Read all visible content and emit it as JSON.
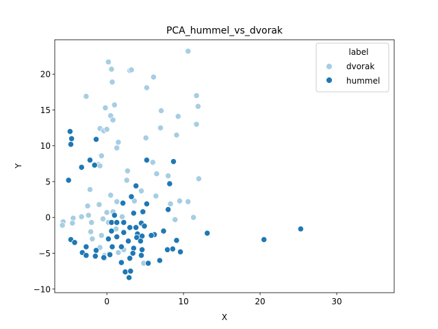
{
  "chart_data": {
    "type": "scatter",
    "title": "PCA_hummel_vs_dvorak",
    "xlabel": "X",
    "ylabel": "Y",
    "xlim": [
      -6.8,
      37.5
    ],
    "ylim": [
      -10.5,
      24.8
    ],
    "xticks": [
      0,
      10,
      20,
      30
    ],
    "yticks": [
      -10,
      -5,
      0,
      5,
      10,
      15,
      20
    ],
    "grid": false,
    "legend": {
      "title": "label",
      "placement": "top-right"
    },
    "series": [
      {
        "name": "dvorak",
        "color": "#a6cee3",
        "points": [
          [
            10.6,
            23.2
          ],
          [
            0.2,
            21.7
          ],
          [
            0.6,
            20.7
          ],
          [
            3.0,
            20.5
          ],
          [
            3.2,
            20.6
          ],
          [
            6.1,
            19.6
          ],
          [
            0.7,
            18.9
          ],
          [
            5.2,
            18.1
          ],
          [
            -2.7,
            16.9
          ],
          [
            11.7,
            17.0
          ],
          [
            1.0,
            15.7
          ],
          [
            -0.2,
            15.3
          ],
          [
            11.9,
            15.5
          ],
          [
            7.1,
            14.9
          ],
          [
            0.5,
            14.2
          ],
          [
            9.3,
            14.1
          ],
          [
            0.8,
            13.6
          ],
          [
            11.7,
            13.0
          ],
          [
            -0.9,
            12.4
          ],
          [
            -0.4,
            12.1
          ],
          [
            0.0,
            12.3
          ],
          [
            7.0,
            12.5
          ],
          [
            9.1,
            11.5
          ],
          [
            5.1,
            11.1
          ],
          [
            1.5,
            10.5
          ],
          [
            1.3,
            9.7
          ],
          [
            -0.7,
            8.6
          ],
          [
            -1.1,
            7.4
          ],
          [
            -0.9,
            7.2
          ],
          [
            6.0,
            7.7
          ],
          [
            2.7,
            6.5
          ],
          [
            6.5,
            6.1
          ],
          [
            2.6,
            5.2
          ],
          [
            8.0,
            5.8
          ],
          [
            12.0,
            5.4
          ],
          [
            -2.2,
            3.9
          ],
          [
            4.5,
            3.7
          ],
          [
            0.5,
            3.1
          ],
          [
            6.4,
            3.0
          ],
          [
            -2.5,
            1.6
          ],
          [
            1.3,
            2.2
          ],
          [
            3.6,
            2.3
          ],
          [
            9.5,
            2.3
          ],
          [
            10.6,
            2.2
          ],
          [
            8.3,
            1.9
          ],
          [
            -1.0,
            1.8
          ],
          [
            0.0,
            0.7
          ],
          [
            0.8,
            0.8
          ],
          [
            2.0,
            0.1
          ],
          [
            -2.4,
            0.3
          ],
          [
            -3.3,
            0.1
          ],
          [
            -4.4,
            -0.1
          ],
          [
            -0.5,
            -0.2
          ],
          [
            11.3,
            0.0
          ],
          [
            8.9,
            -0.3
          ],
          [
            -5.7,
            -0.6
          ],
          [
            -4.5,
            -0.8
          ],
          [
            -2.0,
            -0.7
          ],
          [
            0.2,
            -0.7
          ],
          [
            -5.8,
            -1.1
          ],
          [
            3.1,
            -1.4
          ],
          [
            1.2,
            -1.6
          ],
          [
            -2.1,
            -2.0
          ],
          [
            -0.7,
            -2.5
          ],
          [
            -1.9,
            -3.0
          ],
          [
            -0.9,
            -4.2
          ],
          [
            2.2,
            -4.5
          ],
          [
            1.5,
            -4.9
          ],
          [
            -0.3,
            -5.3
          ],
          [
            -0.3,
            -5.7
          ],
          [
            0.3,
            -5.1
          ],
          [
            4.8,
            -6.4
          ]
        ]
      },
      {
        "name": "hummel",
        "color": "#1f78b4",
        "points": [
          [
            -4.8,
            12.0
          ],
          [
            -4.6,
            11.0
          ],
          [
            -4.7,
            10.2
          ],
          [
            -1.4,
            10.9
          ],
          [
            -2.2,
            8.0
          ],
          [
            -1.6,
            7.3
          ],
          [
            -3.3,
            7.0
          ],
          [
            5.2,
            8.0
          ],
          [
            8.7,
            7.8
          ],
          [
            -5.0,
            5.2
          ],
          [
            8.2,
            4.7
          ],
          [
            3.8,
            4.4
          ],
          [
            3.2,
            2.9
          ],
          [
            2.1,
            2.0
          ],
          [
            5.2,
            1.9
          ],
          [
            8.0,
            1.1
          ],
          [
            4.7,
            0.8
          ],
          [
            3.5,
            0.6
          ],
          [
            1.0,
            0.3
          ],
          [
            0.6,
            -0.7
          ],
          [
            1.3,
            -0.7
          ],
          [
            2.2,
            -0.7
          ],
          [
            4.5,
            -0.8
          ],
          [
            3.0,
            -1.4
          ],
          [
            3.8,
            -1.4
          ],
          [
            4.9,
            -1.2
          ],
          [
            0.6,
            -1.9
          ],
          [
            7.4,
            -1.9
          ],
          [
            2.2,
            -2.1
          ],
          [
            4.0,
            -2.3
          ],
          [
            6.2,
            -2.4
          ],
          [
            1.3,
            -2.7
          ],
          [
            3.9,
            -2.8
          ],
          [
            4.6,
            -2.6
          ],
          [
            5.8,
            -2.5
          ],
          [
            13.1,
            -2.2
          ],
          [
            25.3,
            -1.6
          ],
          [
            20.5,
            -3.1
          ],
          [
            -4.7,
            -3.1
          ],
          [
            -4.2,
            -3.5
          ],
          [
            0.2,
            -3.0
          ],
          [
            2.8,
            -3.3
          ],
          [
            4.4,
            -3.3
          ],
          [
            9.1,
            -3.2
          ],
          [
            -2.7,
            -4.1
          ],
          [
            0.7,
            -4.1
          ],
          [
            1.9,
            -4.1
          ],
          [
            3.5,
            -4.3
          ],
          [
            -1.4,
            -4.6
          ],
          [
            4.6,
            -4.5
          ],
          [
            7.9,
            -4.5
          ],
          [
            8.6,
            -4.4
          ],
          [
            9.6,
            -4.8
          ],
          [
            -3.2,
            -4.9
          ],
          [
            -2.7,
            -5.3
          ],
          [
            -1.5,
            -5.4
          ],
          [
            0.4,
            -5.2
          ],
          [
            3.4,
            -5.0
          ],
          [
            4.5,
            -5.3
          ],
          [
            -0.4,
            -5.6
          ],
          [
            3.0,
            -5.7
          ],
          [
            1.9,
            -6.3
          ],
          [
            5.4,
            -6.4
          ],
          [
            6.9,
            -6.0
          ],
          [
            2.4,
            -7.6
          ],
          [
            3.1,
            -7.5
          ],
          [
            2.9,
            -8.4
          ]
        ]
      }
    ]
  }
}
